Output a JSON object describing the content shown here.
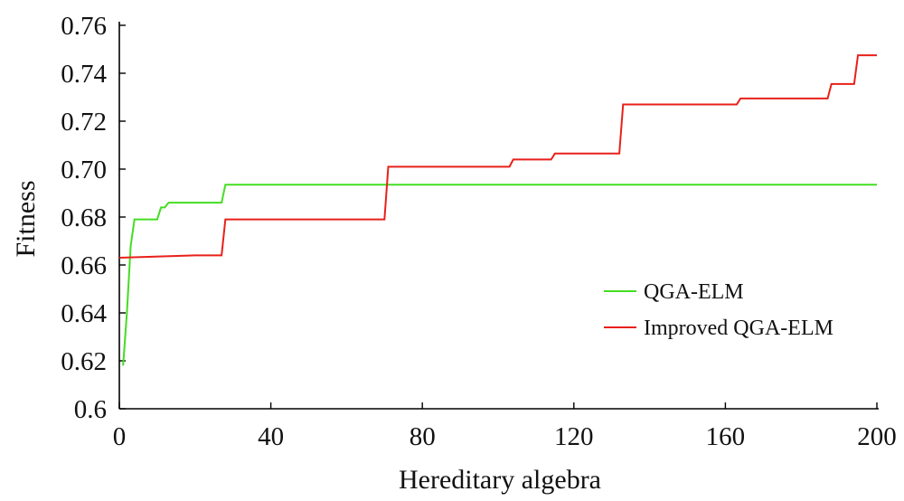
{
  "chart_data": {
    "type": "line",
    "title": "",
    "xlabel": "Hereditary algebra",
    "ylabel": "Fitness",
    "xlim": [
      0,
      200
    ],
    "ylim": [
      0.6,
      0.76
    ],
    "xticks": [
      0,
      40,
      80,
      120,
      160,
      200
    ],
    "yticks": [
      0.6,
      0.62,
      0.64,
      0.66,
      0.68,
      0.7,
      0.72,
      0.74,
      0.76
    ],
    "xtick_labels": [
      "0",
      "40",
      "80",
      "120",
      "160",
      "200"
    ],
    "ytick_labels": [
      "0.6",
      "0.62",
      "0.64",
      "0.66",
      "0.68",
      "0.70",
      "0.72",
      "0.74",
      "0.76"
    ],
    "grid": false,
    "legend_position": "right",
    "series": [
      {
        "name": "QGA-ELM",
        "color": "#44dd22",
        "step": true,
        "x": [
          1,
          2,
          3,
          4,
          10,
          11,
          12,
          13,
          27,
          28,
          200
        ],
        "y": [
          0.618,
          0.64,
          0.668,
          0.679,
          0.679,
          0.684,
          0.684,
          0.686,
          0.686,
          0.6935,
          0.6935
        ]
      },
      {
        "name": "Improved QGA-ELM",
        "color": "#e8201a",
        "step": true,
        "x": [
          0,
          20,
          27,
          28,
          70,
          71,
          103,
          104,
          114,
          115,
          132,
          133,
          163,
          164,
          187,
          188,
          194,
          195,
          200
        ],
        "y": [
          0.663,
          0.664,
          0.664,
          0.679,
          0.679,
          0.701,
          0.701,
          0.704,
          0.704,
          0.7065,
          0.7065,
          0.727,
          0.727,
          0.7295,
          0.7295,
          0.7355,
          0.7355,
          0.7475,
          0.7475
        ]
      }
    ]
  }
}
